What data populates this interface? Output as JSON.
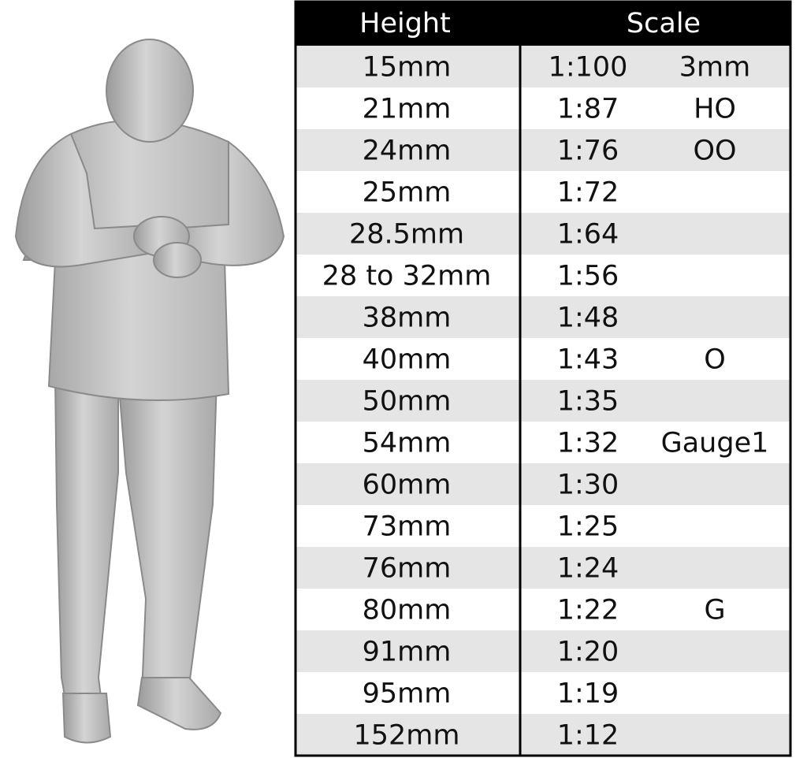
{
  "table": {
    "header": [
      "Height",
      "Scale"
    ],
    "rows": [
      {
        "height": "15mm",
        "scale": "1:100",
        "gauge": "3mm"
      },
      {
        "height": "21mm",
        "scale": "1:87",
        "gauge": "HO"
      },
      {
        "height": "24mm",
        "scale": "1:76",
        "gauge": "OO"
      },
      {
        "height": "25mm",
        "scale": "1:72"
      },
      {
        "height": "28.5mm",
        "scale": "1:64"
      },
      {
        "height": "28 to 32mm",
        "scale": "1:56"
      },
      {
        "height": "38mm",
        "scale": "1:48"
      },
      {
        "height": "40mm",
        "scale": "1:43",
        "gauge": "O"
      },
      {
        "height": "50mm",
        "scale": "1:35"
      },
      {
        "height": "54mm",
        "scale": "1:32",
        "gauge": "Gauge1"
      },
      {
        "height": "60mm",
        "scale": "1:30"
      },
      {
        "height": "73mm",
        "scale": "1:25"
      },
      {
        "height": "76mm",
        "scale": "1:24"
      },
      {
        "height": "80mm",
        "scale": "1:22",
        "gauge": "G"
      },
      {
        "height": "91mm",
        "scale": "1:20"
      },
      {
        "height": "95mm",
        "scale": "1:19"
      },
      {
        "height": "152mm",
        "scale": "1:12"
      }
    ]
  }
}
